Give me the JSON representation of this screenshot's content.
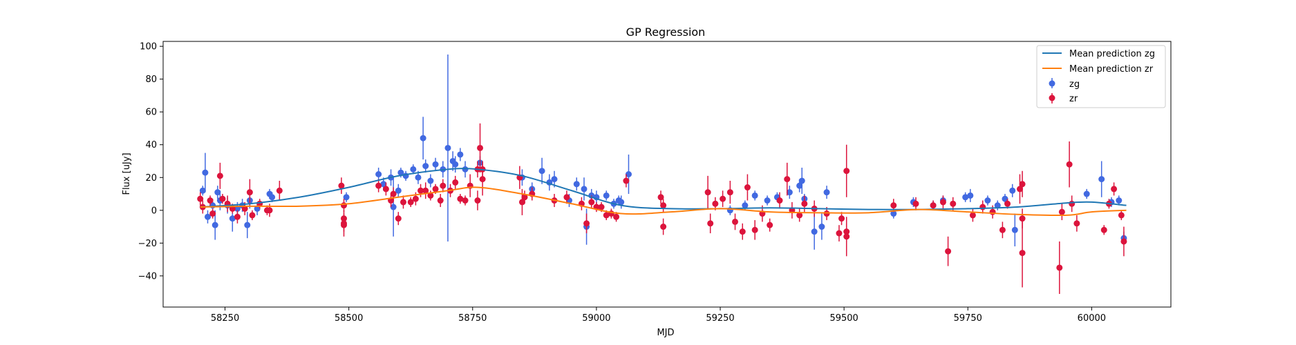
{
  "chart_data": {
    "type": "scatter",
    "title": "GP Regression",
    "xlabel": "MJD",
    "ylabel": "Flux [uJy]",
    "xlim": [
      58125,
      60160
    ],
    "ylim": [
      -59,
      103
    ],
    "xticks": [
      58250,
      58500,
      58750,
      59000,
      59250,
      59500,
      59750,
      60000
    ],
    "yticks": [
      -40,
      -20,
      0,
      20,
      40,
      60,
      80,
      100
    ],
    "grid": false,
    "legend_position": "top-right",
    "lines": [
      {
        "name": "Mean prediction zg",
        "color": "#1f77b4",
        "x": [
          58200,
          58300,
          58400,
          58500,
          58600,
          58700,
          58760,
          58850,
          58950,
          59050,
          59150,
          59250,
          59350,
          59450,
          59550,
          59650,
          59750,
          59850,
          59950,
          60000,
          60070
        ],
        "y": [
          2,
          4,
          8,
          14,
          21,
          25,
          25,
          21,
          12,
          3,
          1,
          1,
          1.5,
          1,
          0.5,
          0.5,
          1,
          2,
          4.5,
          5,
          3
        ]
      },
      {
        "name": "Mean prediction zr",
        "color": "#ff7f0e",
        "x": [
          58200,
          58300,
          58400,
          58500,
          58600,
          58700,
          58760,
          58850,
          58950,
          59050,
          59150,
          59250,
          59350,
          59450,
          59550,
          59650,
          59750,
          59850,
          59950,
          60000,
          60070
        ],
        "y": [
          2,
          2.5,
          2.5,
          4,
          8,
          12,
          14,
          10,
          4,
          -2,
          -1,
          1,
          -1,
          -1.5,
          -1.5,
          0.5,
          -1,
          -2.5,
          -3,
          -1,
          0
        ]
      }
    ],
    "series": [
      {
        "name": "zg",
        "color": "#4169e1",
        "points": [
          [
            58205,
            12,
            3
          ],
          [
            58210,
            23,
            12
          ],
          [
            58215,
            -4,
            4
          ],
          [
            58225,
            3,
            4
          ],
          [
            58230,
            -9,
            9
          ],
          [
            58235,
            11,
            4
          ],
          [
            58240,
            6,
            6
          ],
          [
            58255,
            3,
            5
          ],
          [
            58265,
            -5,
            8
          ],
          [
            58275,
            1,
            4
          ],
          [
            58285,
            3,
            4
          ],
          [
            58295,
            -9,
            8
          ],
          [
            58300,
            6,
            5
          ],
          [
            58315,
            1,
            4
          ],
          [
            58340,
            10,
            3
          ],
          [
            58345,
            8,
            3
          ],
          [
            58495,
            8,
            3
          ],
          [
            58560,
            22,
            4
          ],
          [
            58570,
            16,
            4
          ],
          [
            58585,
            20,
            5
          ],
          [
            58590,
            2,
            18
          ],
          [
            58600,
            12,
            4
          ],
          [
            58605,
            23,
            3
          ],
          [
            58615,
            21,
            3
          ],
          [
            58630,
            25,
            3
          ],
          [
            58640,
            20,
            4
          ],
          [
            58650,
            44,
            13
          ],
          [
            58655,
            27,
            4
          ],
          [
            58665,
            18,
            4
          ],
          [
            58675,
            28,
            4
          ],
          [
            58690,
            25,
            5
          ],
          [
            58700,
            38,
            57
          ],
          [
            58710,
            30,
            6
          ],
          [
            58715,
            28,
            5
          ],
          [
            58725,
            34,
            4
          ],
          [
            58735,
            25,
            5
          ],
          [
            58765,
            29,
            4
          ],
          [
            58850,
            20,
            5
          ],
          [
            58870,
            13,
            4
          ],
          [
            58890,
            24,
            8
          ],
          [
            58905,
            17,
            5
          ],
          [
            58915,
            19,
            5
          ],
          [
            58945,
            6,
            4
          ],
          [
            58960,
            16,
            4
          ],
          [
            58975,
            13,
            7
          ],
          [
            58980,
            -10,
            11
          ],
          [
            58990,
            9,
            4
          ],
          [
            59000,
            8,
            4
          ],
          [
            59020,
            9,
            3
          ],
          [
            59035,
            4,
            3
          ],
          [
            59045,
            6,
            3
          ],
          [
            59050,
            5,
            4
          ],
          [
            59065,
            22,
            12
          ],
          [
            59270,
            0,
            3
          ],
          [
            59300,
            3,
            3
          ],
          [
            59320,
            9,
            3
          ],
          [
            59345,
            6,
            3
          ],
          [
            59365,
            8,
            3
          ],
          [
            59390,
            11,
            4
          ],
          [
            59410,
            15,
            4
          ],
          [
            59415,
            18,
            8
          ],
          [
            59420,
            7,
            3
          ],
          [
            59440,
            -13,
            11
          ],
          [
            59455,
            -10,
            8
          ],
          [
            59465,
            11,
            4
          ],
          [
            59600,
            -2,
            3
          ],
          [
            59640,
            5,
            3
          ],
          [
            59680,
            3,
            3
          ],
          [
            59700,
            6,
            3
          ],
          [
            59745,
            8,
            3
          ],
          [
            59755,
            9,
            4
          ],
          [
            59790,
            6,
            3
          ],
          [
            59810,
            3,
            3
          ],
          [
            59825,
            7,
            3
          ],
          [
            59840,
            12,
            4
          ],
          [
            59845,
            -12,
            10
          ],
          [
            59990,
            10,
            3
          ],
          [
            60020,
            19,
            11
          ],
          [
            60040,
            5,
            3
          ],
          [
            60055,
            6,
            3
          ],
          [
            60065,
            -17,
            4
          ]
        ]
      },
      {
        "name": "zr",
        "color": "#dc143c",
        "points": [
          [
            58200,
            7,
            4
          ],
          [
            58205,
            2,
            4
          ],
          [
            58220,
            6,
            3
          ],
          [
            58225,
            -2,
            3
          ],
          [
            58240,
            21,
            8
          ],
          [
            58245,
            7,
            3
          ],
          [
            58255,
            4,
            5
          ],
          [
            58265,
            1,
            3
          ],
          [
            58275,
            -4,
            4
          ],
          [
            58290,
            1,
            4
          ],
          [
            58300,
            11,
            8
          ],
          [
            58305,
            -3,
            3
          ],
          [
            58320,
            4,
            3
          ],
          [
            58335,
            0,
            3
          ],
          [
            58340,
            0,
            4
          ],
          [
            58360,
            12,
            6
          ],
          [
            58485,
            15,
            5
          ],
          [
            58490,
            3,
            4
          ],
          [
            58490,
            -9,
            7
          ],
          [
            58490,
            -5,
            5
          ],
          [
            58490,
            -8,
            5
          ],
          [
            58560,
            15,
            4
          ],
          [
            58575,
            13,
            4
          ],
          [
            58585,
            6,
            4
          ],
          [
            58590,
            10,
            4
          ],
          [
            58600,
            -5,
            4
          ],
          [
            58610,
            5,
            4
          ],
          [
            58625,
            5,
            3
          ],
          [
            58635,
            7,
            4
          ],
          [
            58645,
            12,
            4
          ],
          [
            58655,
            12,
            5
          ],
          [
            58665,
            9,
            3
          ],
          [
            58675,
            13,
            3
          ],
          [
            58685,
            6,
            4
          ],
          [
            58690,
            15,
            4
          ],
          [
            58705,
            12,
            4
          ],
          [
            58715,
            17,
            4
          ],
          [
            58725,
            7,
            3
          ],
          [
            58735,
            6,
            3
          ],
          [
            58745,
            15,
            7
          ],
          [
            58760,
            25,
            5
          ],
          [
            58760,
            6,
            6
          ],
          [
            58765,
            38,
            15
          ],
          [
            58770,
            19,
            10
          ],
          [
            58770,
            25,
            5
          ],
          [
            58845,
            20,
            7
          ],
          [
            58850,
            5,
            8
          ],
          [
            58855,
            8,
            4
          ],
          [
            58870,
            10,
            4
          ],
          [
            58915,
            6,
            4
          ],
          [
            58940,
            8,
            4
          ],
          [
            58970,
            4,
            4
          ],
          [
            58980,
            -8,
            6
          ],
          [
            58990,
            5,
            4
          ],
          [
            59000,
            2,
            3
          ],
          [
            59010,
            2,
            3
          ],
          [
            59020,
            -3,
            3
          ],
          [
            59030,
            -2,
            3
          ],
          [
            59040,
            -4,
            3
          ],
          [
            59060,
            18,
            4
          ],
          [
            59130,
            8,
            4
          ],
          [
            59135,
            -10,
            5
          ],
          [
            59135,
            3,
            4
          ],
          [
            59225,
            11,
            10
          ],
          [
            59230,
            -8,
            6
          ],
          [
            59240,
            4,
            4
          ],
          [
            59255,
            7,
            5
          ],
          [
            59270,
            11,
            7
          ],
          [
            59280,
            -7,
            5
          ],
          [
            59295,
            -13,
            5
          ],
          [
            59305,
            14,
            8
          ],
          [
            59320,
            -12,
            6
          ],
          [
            59335,
            -2,
            5
          ],
          [
            59350,
            -9,
            4
          ],
          [
            59370,
            6,
            5
          ],
          [
            59385,
            19,
            10
          ],
          [
            59395,
            0,
            5
          ],
          [
            59410,
            -3,
            4
          ],
          [
            59420,
            4,
            5
          ],
          [
            59440,
            1,
            5
          ],
          [
            59465,
            -2,
            4
          ],
          [
            59490,
            -14,
            5
          ],
          [
            59495,
            -5,
            4
          ],
          [
            59505,
            24,
            16
          ],
          [
            59505,
            -16,
            12
          ],
          [
            59505,
            -13,
            5
          ],
          [
            59600,
            3,
            4
          ],
          [
            59645,
            4,
            4
          ],
          [
            59680,
            3,
            3
          ],
          [
            59700,
            5,
            4
          ],
          [
            59710,
            -25,
            9
          ],
          [
            59720,
            4,
            4
          ],
          [
            59760,
            -3,
            4
          ],
          [
            59780,
            2,
            4
          ],
          [
            59800,
            -1,
            4
          ],
          [
            59820,
            -12,
            5
          ],
          [
            59830,
            4,
            3
          ],
          [
            59855,
            13,
            9
          ],
          [
            59860,
            -26,
            21
          ],
          [
            59860,
            16,
            8
          ],
          [
            59860,
            -5,
            6
          ],
          [
            59935,
            -35,
            16
          ],
          [
            59940,
            -1,
            5
          ],
          [
            59955,
            28,
            14
          ],
          [
            59960,
            4,
            5
          ],
          [
            59970,
            -8,
            5
          ],
          [
            60025,
            -12,
            3
          ],
          [
            60035,
            4,
            3
          ],
          [
            60045,
            13,
            4
          ],
          [
            60060,
            -3,
            3
          ],
          [
            60065,
            -19,
            9
          ]
        ]
      }
    ]
  }
}
